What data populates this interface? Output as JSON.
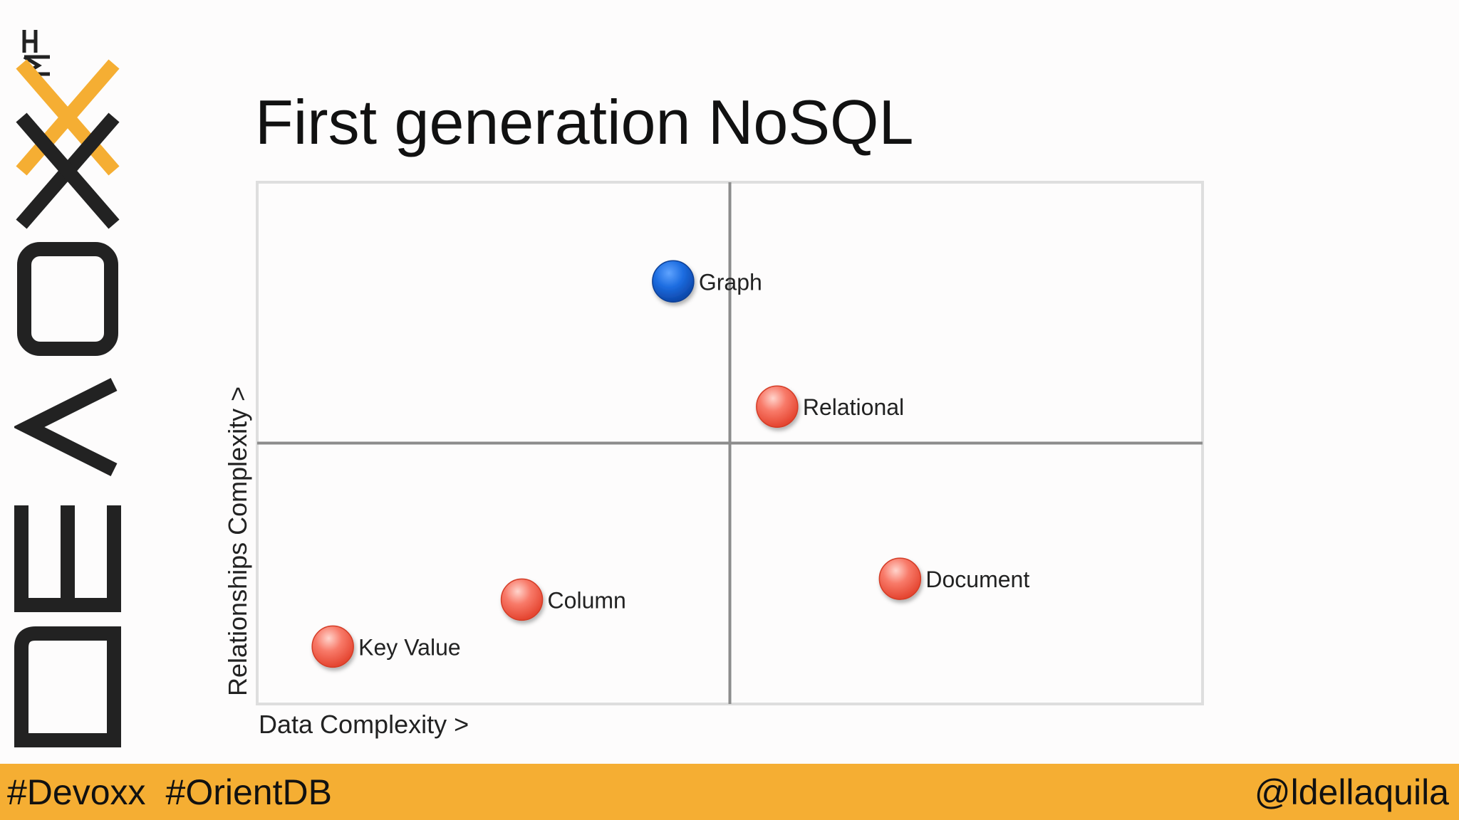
{
  "brand": {
    "logo_text": "DEVOXX",
    "trademark": "TM",
    "accent_color": "#f5ae33",
    "dark_color": "#222222"
  },
  "slide": {
    "title": "First generation NoSQL"
  },
  "footer": {
    "hashtags": [
      "#Devoxx",
      "#OrientDB"
    ],
    "handle": "@ldellaquila"
  },
  "chart_data": {
    "type": "scatter",
    "xlabel": "Data Complexity >",
    "ylabel": "Relationships Complexity >",
    "xlim": [
      0,
      10
    ],
    "ylim": [
      0,
      10
    ],
    "grid": false,
    "quadrant_lines": {
      "x": 5,
      "y": 5
    },
    "points": [
      {
        "label": "Graph",
        "x": 4.4,
        "y": 8.1,
        "color": "#1c6ce0"
      },
      {
        "label": "Relational",
        "x": 5.5,
        "y": 5.7,
        "color": "#f26351"
      },
      {
        "label": "Document",
        "x": 6.8,
        "y": 2.4,
        "color": "#f26351"
      },
      {
        "label": "Column",
        "x": 2.8,
        "y": 2.0,
        "color": "#f26351"
      },
      {
        "label": "Key Value",
        "x": 0.8,
        "y": 1.1,
        "color": "#f26351"
      }
    ]
  }
}
